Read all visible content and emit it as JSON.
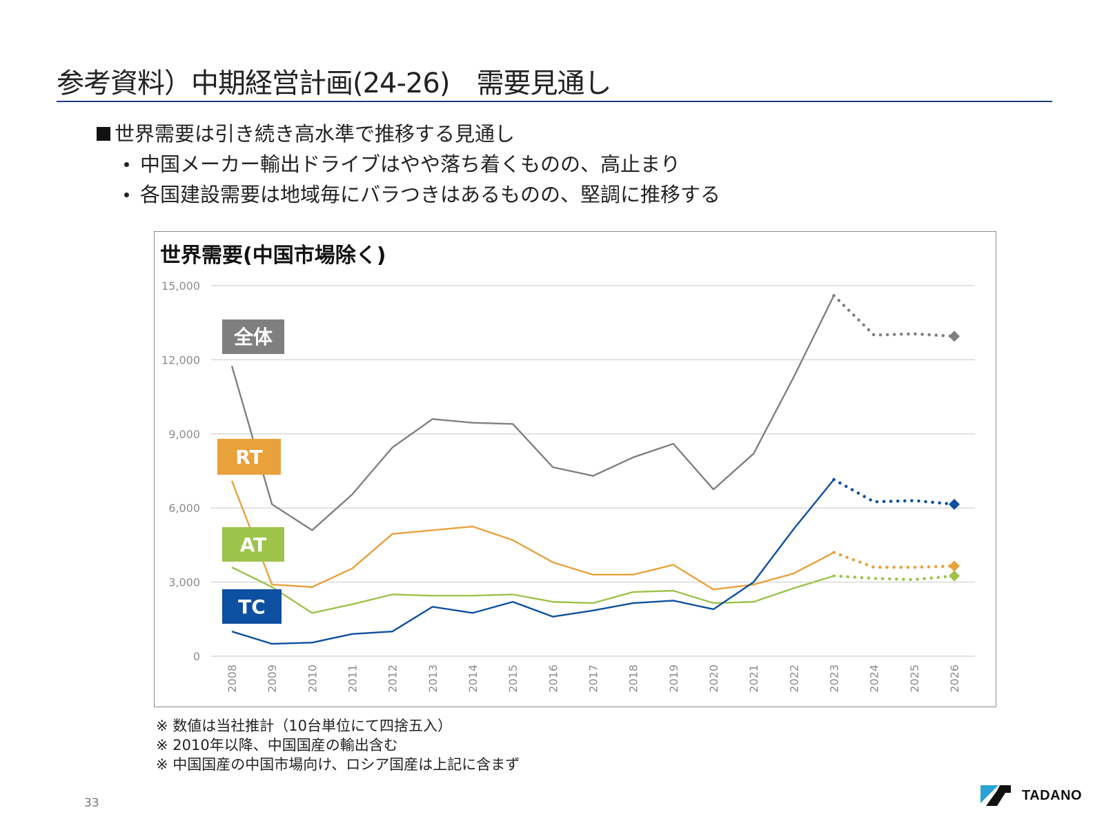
{
  "page": {
    "title": "参考資料）中期経営計画(24-26)　需要見通し",
    "bullet_main": "世界需要は引き続き高水準で推移する見通し",
    "bullet_subs": [
      "中国メーカー輸出ドライブはやや落ち着くものの、高止まり",
      "各国建設需要は地域毎にバラつきはあるものの、堅調に推移する"
    ],
    "notes": [
      "※ 数値は当社推計（10台単位にて四捨五入）",
      "※ 2010年以降、中国国産の輸出含む",
      "※ 中国国産の中国市場向け、ロシア国産は上記に含まず"
    ],
    "page_number": "33",
    "logo_text": "TADANO"
  },
  "chart_data": {
    "type": "line",
    "title": "世界需要(中国市場除く)",
    "xlabel": "",
    "ylabel": "",
    "x": [
      "2008",
      "2009",
      "2010",
      "2011",
      "2012",
      "2013",
      "2014",
      "2015",
      "2016",
      "2017",
      "2018",
      "2019",
      "2020",
      "2021",
      "2022",
      "2023",
      "2024",
      "2025",
      "2026"
    ],
    "ylim": [
      0,
      15000
    ],
    "yticks": [
      0,
      3000,
      6000,
      9000,
      12000,
      15000
    ],
    "ytick_labels": [
      "0",
      "3,000",
      "6,000",
      "9,000",
      "12,000",
      "15,000"
    ],
    "grid": true,
    "forecast_start": "2023",
    "forecast_style": "dotted with diamond marker at final point",
    "series": [
      {
        "name": "全体",
        "color": "#7f7f7f",
        "values": [
          11750,
          6150,
          5100,
          6550,
          8450,
          9600,
          9450,
          9400,
          7650,
          7300,
          8050,
          8600,
          6750,
          8200,
          11300,
          14600,
          13000,
          13050,
          12950
        ]
      },
      {
        "name": "RT",
        "color": "#e9a13b",
        "values": [
          7100,
          2900,
          2800,
          3550,
          4950,
          5100,
          5250,
          4700,
          3800,
          3300,
          3300,
          3700,
          2700,
          2900,
          3350,
          4200,
          3600,
          3600,
          3650
        ]
      },
      {
        "name": "AT",
        "color": "#9dc34a",
        "values": [
          3600,
          2800,
          1750,
          2100,
          2500,
          2450,
          2450,
          2500,
          2200,
          2150,
          2600,
          2650,
          2150,
          2200,
          2750,
          3250,
          3150,
          3100,
          3250
        ]
      },
      {
        "name": "TC",
        "color": "#0d4fa0",
        "values": [
          1000,
          500,
          550,
          900,
          1000,
          2000,
          1750,
          2200,
          1600,
          1850,
          2150,
          2250,
          1900,
          3000,
          5150,
          7150,
          6250,
          6300,
          6150
        ]
      }
    ],
    "legend": {
      "placement": "left inline labels",
      "labels": [
        "全体",
        "RT",
        "AT",
        "TC"
      ]
    }
  }
}
